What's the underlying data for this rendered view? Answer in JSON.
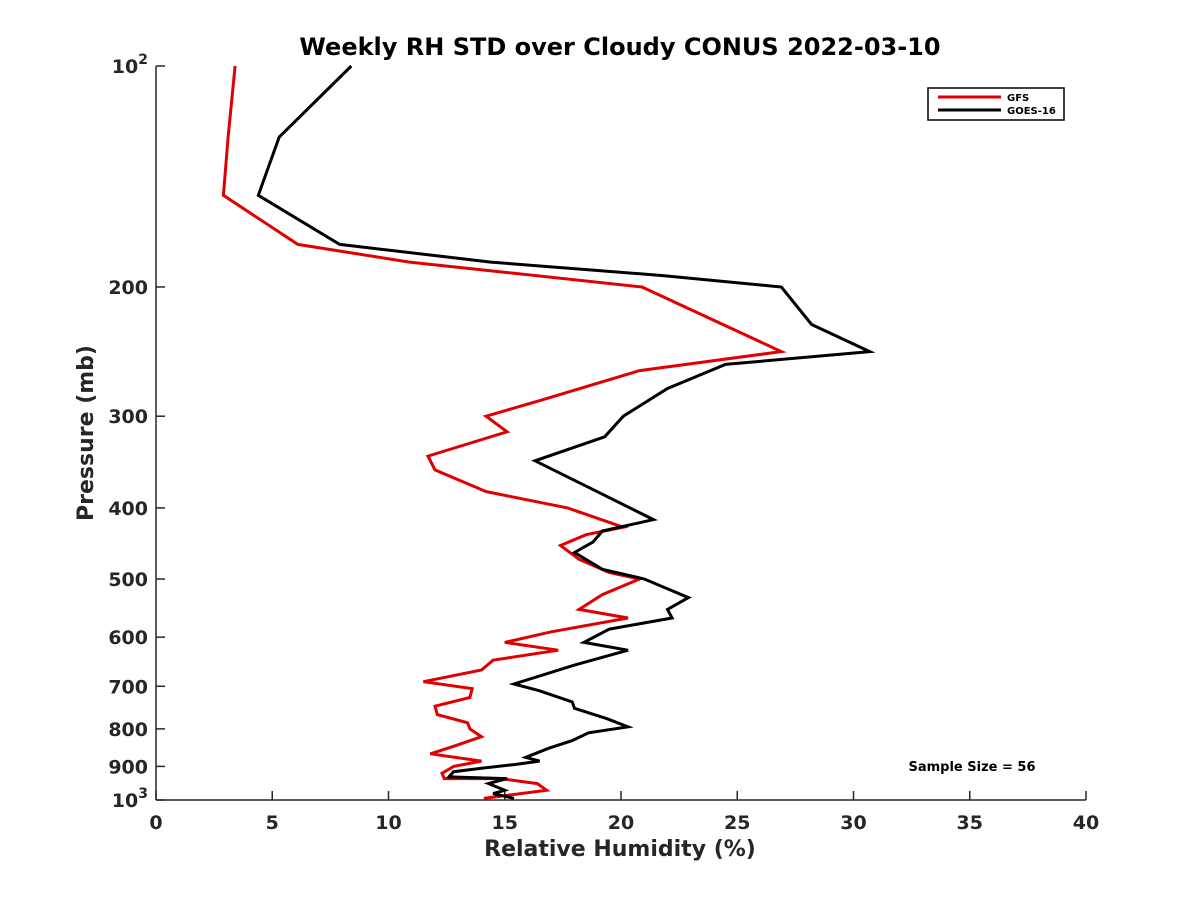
{
  "chart_data": {
    "type": "line",
    "title": "Weekly RH STD over Cloudy CONUS 2022-03-10",
    "xlabel": "Relative Humidity (%)",
    "ylabel": "Pressure (mb)",
    "xlim": [
      0,
      40
    ],
    "ylim": [
      100,
      1000
    ],
    "yscale": "log",
    "y_reversed": true,
    "x_ticks": [
      0,
      5,
      10,
      15,
      20,
      25,
      30,
      35,
      40
    ],
    "x_tick_labels": [
      "0",
      "5",
      "10",
      "15",
      "20",
      "25",
      "30",
      "35",
      "40"
    ],
    "y_ticks": [
      100,
      200,
      300,
      400,
      500,
      600,
      700,
      800,
      900,
      1000
    ],
    "y_tick_labels": [
      {
        "base": "10",
        "exp": "2"
      },
      {
        "base": "200",
        "exp": ""
      },
      {
        "base": "300",
        "exp": ""
      },
      {
        "base": "400",
        "exp": ""
      },
      {
        "base": "500",
        "exp": ""
      },
      {
        "base": "600",
        "exp": ""
      },
      {
        "base": "700",
        "exp": ""
      },
      {
        "base": "800",
        "exp": ""
      },
      {
        "base": "900",
        "exp": ""
      },
      {
        "base": "10",
        "exp": "3"
      }
    ],
    "grid": false,
    "legend_position": "top-right",
    "annotation": "Sample Size = 56",
    "series": [
      {
        "name": "GFS",
        "color": "#e00000",
        "points": [
          [
            3.4,
            100
          ],
          [
            3.1,
            125
          ],
          [
            2.9,
            150
          ],
          [
            6.1,
            175
          ],
          [
            10.9,
            185
          ],
          [
            20.9,
            200
          ],
          [
            26.9,
            245
          ],
          [
            20.8,
            260
          ],
          [
            16.6,
            285
          ],
          [
            14.2,
            300
          ],
          [
            15.1,
            315
          ],
          [
            11.7,
            340
          ],
          [
            12.0,
            355
          ],
          [
            14.2,
            380
          ],
          [
            17.7,
            400
          ],
          [
            20.1,
            425
          ],
          [
            18.5,
            435
          ],
          [
            17.4,
            450
          ],
          [
            18.2,
            470
          ],
          [
            19.5,
            490
          ],
          [
            20.8,
            500
          ],
          [
            19.2,
            525
          ],
          [
            18.2,
            550
          ],
          [
            20.3,
            565
          ],
          [
            17.0,
            590
          ],
          [
            15.0,
            610
          ],
          [
            17.3,
            625
          ],
          [
            14.5,
            645
          ],
          [
            14.0,
            665
          ],
          [
            11.5,
            690
          ],
          [
            13.6,
            705
          ],
          [
            13.5,
            725
          ],
          [
            12.0,
            745
          ],
          [
            12.1,
            765
          ],
          [
            13.4,
            785
          ],
          [
            13.5,
            800
          ],
          [
            14.0,
            820
          ],
          [
            12.8,
            845
          ],
          [
            11.8,
            865
          ],
          [
            14.0,
            885
          ],
          [
            12.8,
            900
          ],
          [
            12.3,
            920
          ],
          [
            12.4,
            935
          ],
          [
            14.8,
            935
          ],
          [
            16.4,
            950
          ],
          [
            16.8,
            970
          ],
          [
            14.1,
            995
          ]
        ]
      },
      {
        "name": "GOES-16",
        "color": "#000000",
        "points": [
          [
            8.4,
            100
          ],
          [
            5.3,
            125
          ],
          [
            4.4,
            150
          ],
          [
            7.9,
            175
          ],
          [
            14.4,
            185
          ],
          [
            21.8,
            193
          ],
          [
            26.9,
            200
          ],
          [
            28.2,
            225
          ],
          [
            30.7,
            245
          ],
          [
            24.5,
            255
          ],
          [
            22.0,
            275
          ],
          [
            20.1,
            300
          ],
          [
            19.3,
            320
          ],
          [
            16.3,
            345
          ],
          [
            18.6,
            375
          ],
          [
            21.4,
            415
          ],
          [
            19.2,
            430
          ],
          [
            18.8,
            445
          ],
          [
            18.0,
            460
          ],
          [
            19.2,
            485
          ],
          [
            21.0,
            500
          ],
          [
            22.9,
            530
          ],
          [
            22.0,
            550
          ],
          [
            22.2,
            565
          ],
          [
            19.5,
            585
          ],
          [
            18.4,
            610
          ],
          [
            20.3,
            625
          ],
          [
            18.0,
            655
          ],
          [
            15.4,
            695
          ],
          [
            16.5,
            710
          ],
          [
            17.9,
            735
          ],
          [
            18.0,
            750
          ],
          [
            19.4,
            775
          ],
          [
            20.3,
            795
          ],
          [
            18.6,
            810
          ],
          [
            17.9,
            830
          ],
          [
            16.9,
            850
          ],
          [
            15.9,
            875
          ],
          [
            16.5,
            885
          ],
          [
            15.4,
            895
          ],
          [
            14.0,
            905
          ],
          [
            12.8,
            915
          ],
          [
            12.6,
            930
          ],
          [
            15.1,
            935
          ],
          [
            14.3,
            950
          ],
          [
            15.0,
            970
          ],
          [
            14.5,
            980
          ],
          [
            15.4,
            995
          ]
        ]
      }
    ]
  }
}
